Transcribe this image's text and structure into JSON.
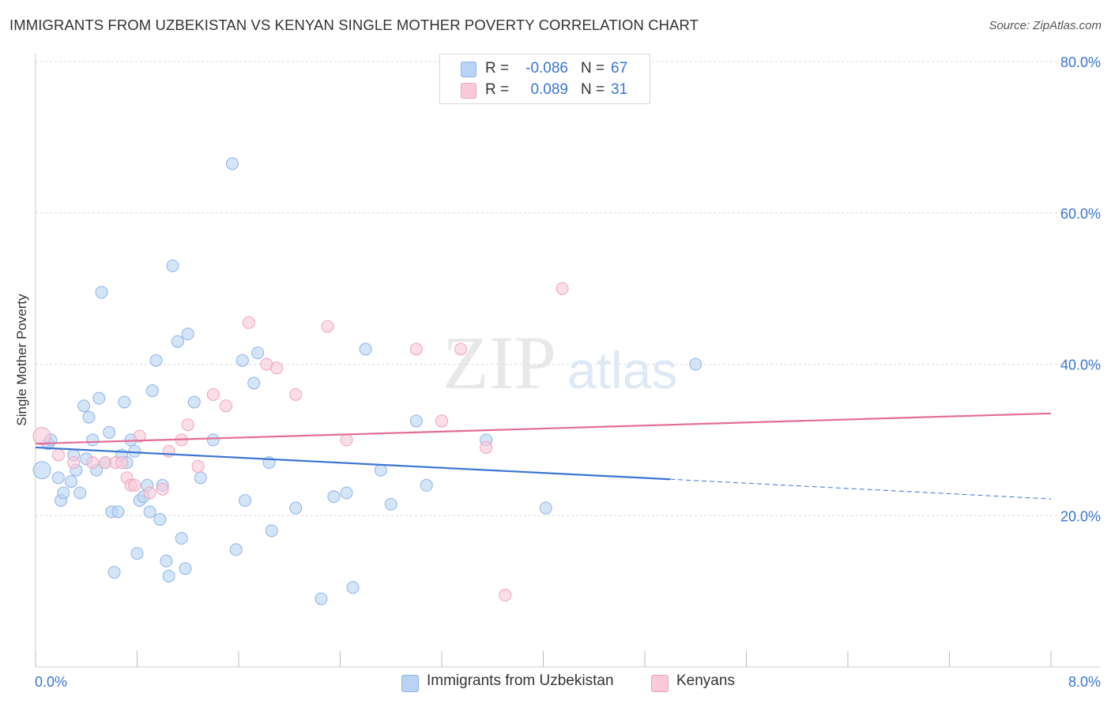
{
  "title": "IMMIGRANTS FROM UZBEKISTAN VS KENYAN SINGLE MOTHER POVERTY CORRELATION CHART",
  "source": "Source: ZipAtlas.com",
  "watermark": {
    "zip": "ZIP",
    "atlas": "atlas"
  },
  "legend_top": [
    {
      "r_label": "R =",
      "r_value": "-0.086",
      "n_label": "N =",
      "n_value": "67",
      "swatch_fill": "#b8d3f4",
      "swatch_stroke": "#8fb4e8"
    },
    {
      "r_label": "R =",
      "r_value": "0.089",
      "n_label": "N =",
      "n_value": "31",
      "swatch_fill": "#f9cad8",
      "swatch_stroke": "#efa3bb"
    }
  ],
  "legend_bottom": [
    {
      "label": "Immigrants from Uzbekistan",
      "fill": "#b8d3f4",
      "stroke": "#8fb4e8"
    },
    {
      "label": "Kenyans",
      "fill": "#f9cad8",
      "stroke": "#efa3bb"
    }
  ],
  "chart_data": {
    "type": "scatter",
    "title": "IMMIGRANTS FROM UZBEKISTAN VS KENYAN SINGLE MOTHER POVERTY CORRELATION CHART",
    "xlabel": "",
    "ylabel": "Single Mother Poverty",
    "xlim": [
      0,
      8
    ],
    "ylim": [
      0,
      80
    ],
    "x_tick_labels": [
      "0.0%",
      "8.0%"
    ],
    "y_ticks": [
      20,
      40,
      60,
      80
    ],
    "y_tick_labels": [
      "20.0%",
      "40.0%",
      "60.0%",
      "80.0%"
    ],
    "grid": true,
    "legend_placement": "top-center",
    "series": [
      {
        "name": "Immigrants from Uzbekistan",
        "color": "#3a74d4",
        "point_fill": "#b8d3f4",
        "point_stroke": "#8fb4e8",
        "r": -0.086,
        "n": 67,
        "trend": {
          "x0": 0,
          "y0": 29.0,
          "x1": 5.0,
          "y1": 24.8,
          "dash_to_x": 8.0,
          "dash_to_y": 22.2
        },
        "x": [
          0.05,
          0.1,
          0.12,
          0.18,
          0.2,
          0.22,
          0.28,
          0.3,
          0.32,
          0.35,
          0.38,
          0.4,
          0.42,
          0.45,
          0.48,
          0.5,
          0.52,
          0.55,
          0.58,
          0.6,
          0.62,
          0.65,
          0.68,
          0.7,
          0.72,
          0.75,
          0.78,
          0.8,
          0.82,
          0.85,
          0.88,
          0.9,
          0.92,
          0.95,
          0.98,
          1.0,
          1.03,
          1.05,
          1.08,
          1.12,
          1.15,
          1.18,
          1.2,
          1.25,
          1.3,
          1.4,
          1.55,
          1.58,
          1.63,
          1.65,
          1.72,
          1.75,
          1.84,
          1.86,
          2.05,
          2.25,
          2.35,
          2.45,
          2.5,
          2.6,
          2.72,
          2.8,
          3.0,
          3.08,
          3.55,
          4.02,
          5.2
        ],
        "y": [
          26,
          29.5,
          30,
          25,
          22,
          23,
          24.5,
          28,
          26,
          23,
          34.5,
          27.5,
          33,
          30,
          26,
          35.5,
          49.5,
          27,
          31,
          20.5,
          12.5,
          20.5,
          28,
          35,
          27,
          30,
          28.5,
          15,
          22,
          22.5,
          24,
          20.5,
          36.5,
          40.5,
          19.5,
          24,
          14,
          12,
          53,
          43,
          17,
          13,
          44,
          35,
          25,
          30,
          66.5,
          15.5,
          40.5,
          22,
          37.5,
          41.5,
          27,
          18,
          21,
          9,
          22.5,
          23,
          10.5,
          42,
          26,
          21.5,
          32.5,
          24,
          30,
          21,
          40
        ]
      },
      {
        "name": "Kenyans",
        "color": "#e46d96",
        "point_fill": "#f9cad8",
        "point_stroke": "#efa3bb",
        "r": 0.089,
        "n": 31,
        "trend": {
          "x0": 0,
          "y0": 29.5,
          "x1": 8.0,
          "y1": 33.5
        },
        "x": [
          0.05,
          0.18,
          0.3,
          0.45,
          0.55,
          0.63,
          0.68,
          0.72,
          0.75,
          0.78,
          0.82,
          0.9,
          1.0,
          1.05,
          1.15,
          1.2,
          1.28,
          1.4,
          1.5,
          1.68,
          1.82,
          1.9,
          2.05,
          2.3,
          2.45,
          3.0,
          3.2,
          3.35,
          3.55,
          3.7,
          4.15
        ],
        "y": [
          30.5,
          28,
          27,
          27,
          27,
          27,
          27,
          25,
          24,
          24,
          30.5,
          23,
          23.5,
          28.5,
          30,
          32,
          26.5,
          36,
          34.5,
          45.5,
          40,
          39.5,
          36,
          45,
          30,
          42,
          32.5,
          42,
          29,
          9.5,
          50
        ]
      }
    ]
  }
}
